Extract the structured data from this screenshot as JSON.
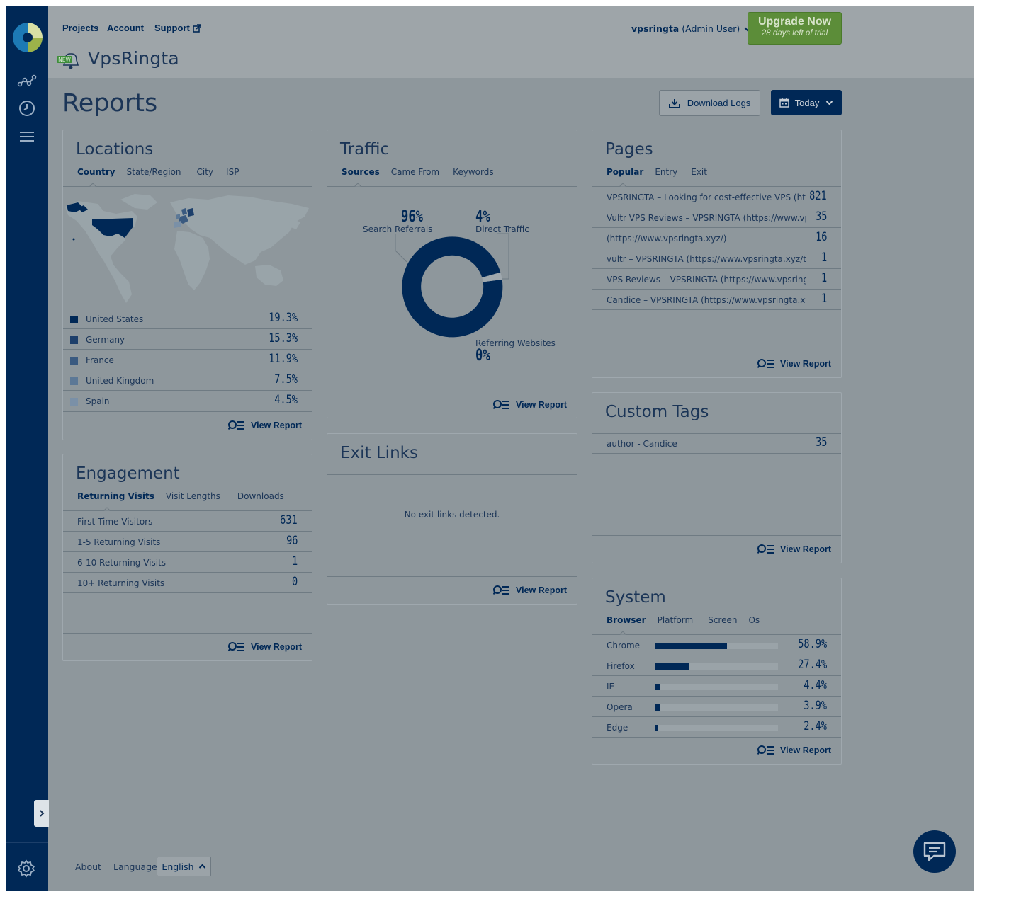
{
  "nav": {
    "projects": "Projects",
    "account": "Account",
    "support": "Support",
    "site_name": "VpsRingta",
    "new_badge": "NEW",
    "user_name": "vpsringta",
    "user_role": "(Admin User)",
    "upgrade_title": "Upgrade Now",
    "upgrade_sub": "28 days left of trial"
  },
  "page": {
    "title": "Reports",
    "download_logs": "Download Logs",
    "date_range": "Today"
  },
  "locations": {
    "title": "Locations",
    "tabs": [
      "Country",
      "State/Region",
      "City",
      "ISP"
    ],
    "rows": [
      {
        "label": "United States",
        "value": "19.3%",
        "color": "#002856"
      },
      {
        "label": "Germany",
        "value": "15.3%",
        "color": "#1d3f6b"
      },
      {
        "label": "France",
        "value": "11.9%",
        "color": "#3a5a80"
      },
      {
        "label": "United Kingdom",
        "value": "7.5%",
        "color": "#5c7896"
      },
      {
        "label": "Spain",
        "value": "4.5%",
        "color": "#7a90a7"
      }
    ],
    "view_report": "View Report"
  },
  "traffic": {
    "title": "Traffic",
    "tabs": [
      "Sources",
      "Came From",
      "Keywords"
    ],
    "search_pct": "96%",
    "search_label": "Search Referrals",
    "direct_pct": "4%",
    "direct_label": "Direct Traffic",
    "referring_pct": "0%",
    "referring_label": "Referring Websites",
    "view_report": "View Report"
  },
  "pages": {
    "title": "Pages",
    "tabs": [
      "Popular",
      "Entry",
      "Exit"
    ],
    "rows": [
      {
        "label": "VPSRINGTA – Looking for cost-effective VPS (ht...",
        "value": "821"
      },
      {
        "label": "Vultr VPS Reviews – VPSRINGTA (https://www.vp...",
        "value": "35"
      },
      {
        "label": "(https://www.vpsringta.xyz/)",
        "value": "16"
      },
      {
        "label": "vultr – VPSRINGTA (https://www.vpsringta.xyz/tag...",
        "value": "1"
      },
      {
        "label": "VPS Reviews – VPSRINGTA (https://www.vpsringta....",
        "value": "1"
      },
      {
        "label": "Candice – VPSRINGTA (https://www.vpsringta.xyz/...",
        "value": "1"
      }
    ],
    "view_report": "View Report"
  },
  "engagement": {
    "title": "Engagement",
    "tabs": [
      "Returning Visits",
      "Visit Lengths",
      "Downloads"
    ],
    "rows": [
      {
        "label": "First Time Visitors",
        "value": "631"
      },
      {
        "label": "1-5 Returning Visits",
        "value": "96"
      },
      {
        "label": "6-10 Returning Visits",
        "value": "1"
      },
      {
        "label": "10+ Returning Visits",
        "value": "0"
      }
    ],
    "view_report": "View Report"
  },
  "exit_links": {
    "title": "Exit Links",
    "empty": "No exit links detected.",
    "view_report": "View Report"
  },
  "custom_tags": {
    "title": "Custom Tags",
    "rows": [
      {
        "label": "author - Candice",
        "value": "35"
      }
    ],
    "view_report": "View Report"
  },
  "system": {
    "title": "System",
    "tabs": [
      "Browser",
      "Platform",
      "Screen",
      "Os"
    ],
    "rows": [
      {
        "label": "Chrome",
        "value": "58.9%",
        "fraction": 0.589
      },
      {
        "label": "Firefox",
        "value": "27.4%",
        "fraction": 0.274
      },
      {
        "label": "IE",
        "value": "4.4%",
        "fraction": 0.044
      },
      {
        "label": "Opera",
        "value": "3.9%",
        "fraction": 0.039
      },
      {
        "label": "Edge",
        "value": "2.4%",
        "fraction": 0.024
      }
    ],
    "view_report": "View Report"
  },
  "footer": {
    "about": "About",
    "language_label": "Language:",
    "language": "English"
  },
  "icons": [
    "logo-icon",
    "analytics-icon",
    "clock-icon",
    "menu-icon",
    "settings-gear-icon",
    "download-icon",
    "calendar-icon",
    "chat-icon",
    "view-report-icon"
  ]
}
